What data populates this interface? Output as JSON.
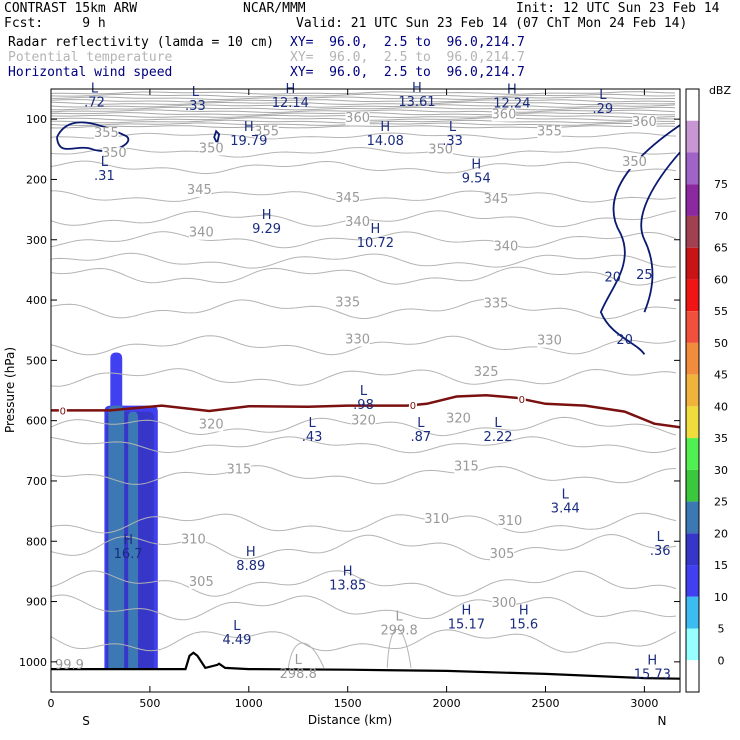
{
  "header": {
    "model": "CONTRAST 15km ARW",
    "org": "NCAR/MMM",
    "init": "Init: 12 UTC Sun 23 Feb 14",
    "fcst": "Fcst:     9 h",
    "valid": "Valid: 21 UTC Sun 23 Feb 14 (07 ChT Mon 24 Feb 14)",
    "fields": [
      {
        "name": "Radar reflectivity (lamda = 10 cm)",
        "xy": "XY=  96.0,  2.5 to  96.0,214.7",
        "color": "#000080"
      },
      {
        "name": "Potential temperature",
        "xy": "XY=  96.0,  2.5 to  96.0,214.7",
        "color": "#b4b4b4"
      },
      {
        "name": "Horizontal wind speed",
        "xy": "XY=  96.0,  2.5 to  96.0,214.7",
        "color": "#000080"
      }
    ]
  },
  "chart_data": {
    "type": "cross-section",
    "xlabel": "Distance (km)",
    "ylabel": "Pressure (hPa)",
    "xlim": [
      0,
      3180
    ],
    "ylim": [
      1050,
      50
    ],
    "x_ticks": [
      0,
      500,
      1000,
      1500,
      2000,
      2500,
      3000
    ],
    "y_ticks": [
      100,
      200,
      300,
      400,
      500,
      600,
      700,
      800,
      900,
      1000
    ],
    "end_labels": {
      "left": "S",
      "right": "N"
    },
    "colorbar": {
      "unit": "dBZ",
      "levels": [
        "0",
        "5",
        "10",
        "15",
        "20",
        "25",
        "30",
        "35",
        "40",
        "45",
        "50",
        "55",
        "60",
        "65",
        "70",
        "75"
      ],
      "colors": [
        "#ffffff",
        "#96ffff",
        "#3cbcf0",
        "#4040f0",
        "#3636c8",
        "#3c78b4",
        "#3cc83c",
        "#50f050",
        "#f0dc3c",
        "#f0b43c",
        "#f08c3c",
        "#f0503c",
        "#f01414",
        "#c81414",
        "#a04050",
        "#8c28a0",
        "#a064c8",
        "#c896d2",
        "#ffffff"
      ]
    },
    "reflectivity_cells": [
      {
        "x1": 270,
        "x2": 540,
        "ptop": 575,
        "dbz": 10
      },
      {
        "x1": 300,
        "x2": 360,
        "ptop": 487,
        "dbz": 10
      },
      {
        "x1": 280,
        "x2": 520,
        "ptop": 585,
        "dbz": 15
      },
      {
        "x1": 290,
        "x2": 370,
        "ptop": 575,
        "dbz": 20
      },
      {
        "x1": 390,
        "x2": 440,
        "ptop": 585,
        "dbz": 20
      }
    ],
    "theta_labels": [
      {
        "x": 1550,
        "p": 105,
        "v": "360"
      },
      {
        "x": 2290,
        "p": 99,
        "v": "360"
      },
      {
        "x": 3000,
        "p": 111,
        "v": "360"
      },
      {
        "x": 1090,
        "p": 127,
        "v": "355"
      },
      {
        "x": 2520,
        "p": 127,
        "v": "355"
      },
      {
        "x": 280,
        "p": 130,
        "v": "355"
      },
      {
        "x": 810,
        "p": 155,
        "v": "350"
      },
      {
        "x": 1970,
        "p": 157,
        "v": "350"
      },
      {
        "x": 320,
        "p": 163,
        "v": "350"
      },
      {
        "x": 2950,
        "p": 178,
        "v": "350"
      },
      {
        "x": 750,
        "p": 224,
        "v": "345"
      },
      {
        "x": 1500,
        "p": 237,
        "v": "345"
      },
      {
        "x": 2250,
        "p": 239,
        "v": "345"
      },
      {
        "x": 760,
        "p": 295,
        "v": "340"
      },
      {
        "x": 1550,
        "p": 277,
        "v": "340"
      },
      {
        "x": 2300,
        "p": 318,
        "v": "340"
      },
      {
        "x": 1500,
        "p": 411,
        "v": "335"
      },
      {
        "x": 2250,
        "p": 412,
        "v": "335"
      },
      {
        "x": 1550,
        "p": 472,
        "v": "330"
      },
      {
        "x": 2520,
        "p": 474,
        "v": "330"
      },
      {
        "x": 2200,
        "p": 526,
        "v": "325"
      },
      {
        "x": 1580,
        "p": 606,
        "v": "320"
      },
      {
        "x": 810,
        "p": 613,
        "v": "320"
      },
      {
        "x": 2060,
        "p": 603,
        "v": "320"
      },
      {
        "x": 950,
        "p": 688,
        "v": "315"
      },
      {
        "x": 2100,
        "p": 683,
        "v": "315"
      },
      {
        "x": 1950,
        "p": 770,
        "v": "310"
      },
      {
        "x": 2320,
        "p": 773,
        "v": "310"
      },
      {
        "x": 720,
        "p": 804,
        "v": "310"
      },
      {
        "x": 2280,
        "p": 828,
        "v": "305"
      },
      {
        "x": 760,
        "p": 874,
        "v": "305"
      },
      {
        "x": 2290,
        "p": 909,
        "v": "300"
      }
    ],
    "hl_markers": [
      {
        "x": 220,
        "p": 79,
        "t": "L",
        "v": ".72"
      },
      {
        "x": 730,
        "p": 85,
        "t": "L",
        "v": ".33"
      },
      {
        "x": 1210,
        "p": 80,
        "t": "H",
        "v": "12.14"
      },
      {
        "x": 1850,
        "p": 78,
        "t": "H",
        "v": "13.61"
      },
      {
        "x": 2330,
        "p": 81,
        "t": "H",
        "v": "12.24"
      },
      {
        "x": 2790,
        "p": 90,
        "t": "L",
        "v": ".29"
      },
      {
        "x": 1000,
        "p": 143,
        "t": "H",
        "v": "19.79"
      },
      {
        "x": 1690,
        "p": 143,
        "t": "H",
        "v": "14.08"
      },
      {
        "x": 2030,
        "p": 143,
        "t": "L",
        "v": ".33"
      },
      {
        "x": 270,
        "p": 201,
        "t": "L",
        "v": ".31"
      },
      {
        "x": 2150,
        "p": 205,
        "t": "H",
        "v": "9.54"
      },
      {
        "x": 1090,
        "p": 289,
        "t": "H",
        "v": "9.29"
      },
      {
        "x": 1640,
        "p": 312,
        "t": "H",
        "v": "10.72"
      },
      {
        "x": 1580,
        "p": 581,
        "t": "L",
        "v": ".98"
      },
      {
        "x": 1320,
        "p": 634,
        "t": "L",
        "v": ".43"
      },
      {
        "x": 1870,
        "p": 634,
        "t": "L",
        "v": ".87"
      },
      {
        "x": 2260,
        "p": 634,
        "t": "L",
        "v": "2.22"
      },
      {
        "x": 2600,
        "p": 752,
        "t": "L",
        "v": "3.44"
      },
      {
        "x": 3080,
        "p": 823,
        "t": "L",
        "v": ".36"
      },
      {
        "x": 390,
        "p": 828,
        "t": "H",
        "v": "16.7"
      },
      {
        "x": 1010,
        "p": 848,
        "t": "H",
        "v": "8.89"
      },
      {
        "x": 1500,
        "p": 880,
        "t": "H",
        "v": "13.85"
      },
      {
        "x": 2100,
        "p": 945,
        "t": "H",
        "v": "15.17"
      },
      {
        "x": 2390,
        "p": 945,
        "t": "H",
        "v": "15.6"
      },
      {
        "x": 940,
        "p": 970,
        "t": "L",
        "v": "4.49"
      },
      {
        "x": 3040,
        "p": 1028,
        "t": "H",
        "v": "15.73"
      }
    ],
    "low_theta_labels": [
      {
        "x": 1760,
        "p": 955,
        "t": "L",
        "v": "299.8"
      },
      {
        "x": 1250,
        "p": 1027,
        "t": "L",
        "v": "298.8"
      }
    ],
    "edge_labels": [
      {
        "x": 20,
        "p": 1012,
        "v": "99.9"
      }
    ],
    "wind_labels": [
      {
        "x": 2840,
        "p": 369,
        "v": "20"
      },
      {
        "x": 3000,
        "p": 365,
        "v": "25"
      },
      {
        "x": 2900,
        "p": 473,
        "v": "20"
      }
    ],
    "freezing_level": {
      "label": "0",
      "x": [
        0,
        300,
        560,
        800,
        1000,
        1300,
        1500,
        1800,
        1900,
        2050,
        2200,
        2350,
        2500,
        2700,
        2900,
        3050,
        3180
      ],
      "p": [
        583,
        583,
        575,
        584,
        576,
        577,
        575,
        575,
        572,
        560,
        558,
        562,
        572,
        575,
        585,
        605,
        611
      ]
    },
    "terrain": {
      "x": [
        0,
        600,
        680,
        700,
        720,
        740,
        780,
        840,
        850,
        880,
        1000,
        1500,
        2000,
        2500,
        3000,
        3180
      ],
      "p": [
        1012,
        1012,
        1012,
        990,
        985,
        990,
        1010,
        1005,
        1003,
        1010,
        1012,
        1013,
        1015,
        1020,
        1027,
        1028
      ]
    }
  }
}
